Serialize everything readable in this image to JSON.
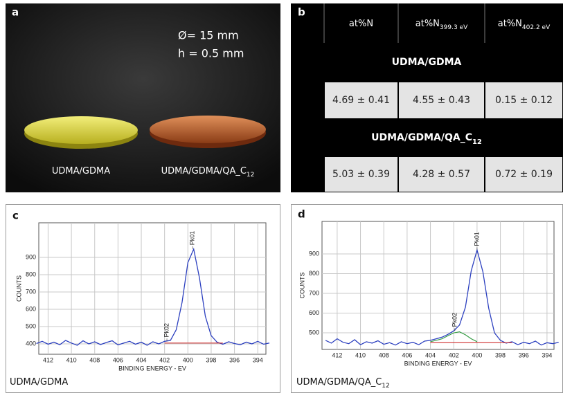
{
  "panel_a": {
    "panel_label": "a",
    "dimensions": [
      "Ø= 15 mm",
      "h = 0.5 mm"
    ],
    "labels": [
      {
        "text": "UDMA/GDMA"
      },
      {
        "text": "UDMA/GDMA/QA_C",
        "sub": "12"
      }
    ]
  },
  "panel_b": {
    "panel_label": "b",
    "header": [
      {
        "text": "at%N"
      },
      {
        "text": "at%N",
        "sub": "399.3 eV"
      },
      {
        "text": "at%N",
        "sub": "402.2 eV"
      }
    ],
    "groups": [
      {
        "title": {
          "text": "UDMA/GDMA"
        },
        "values": [
          "4.69 ± 0.41",
          "4.55 ± 0.43",
          "0.15 ± 0.12"
        ]
      },
      {
        "title": {
          "text": "UDMA/GDMA/QA_C",
          "sub": "12"
        },
        "values": [
          "5.03 ± 0.39",
          "4.28 ± 0.57",
          "0.72 ± 0.19"
        ]
      }
    ]
  },
  "chart_data": [
    {
      "type": "line",
      "panel_label": "c",
      "caption": {
        "text": "UDMA/GDMA"
      },
      "x_label": "BINDING ENERGY - EV",
      "y_label": "COUNTS",
      "x": [
        413,
        412.5,
        412,
        411.5,
        411,
        410.5,
        410,
        409.5,
        409,
        408.5,
        408,
        407.5,
        407,
        406.5,
        406,
        405.5,
        405,
        404.5,
        404,
        403.5,
        403,
        402.5,
        402,
        401.5,
        401,
        400.5,
        400,
        399.5,
        399,
        398.5,
        398,
        397.5,
        397,
        396.5,
        396,
        395.5,
        395,
        394.5,
        394,
        393.5,
        393
      ],
      "series": [
        {
          "color": "#2b3fbf",
          "values": [
            402,
            415,
            398,
            410,
            395,
            420,
            405,
            392,
            418,
            400,
            412,
            396,
            408,
            418,
            394,
            405,
            415,
            398,
            410,
            392,
            412,
            400,
            415,
            420,
            482,
            640,
            870,
            948,
            780,
            560,
            448,
            410,
            398,
            412,
            402,
            395,
            410,
            400,
            415,
            398,
            405
          ]
        },
        {
          "color": "#d03030",
          "values": [
            null,
            null,
            null,
            null,
            null,
            null,
            null,
            null,
            null,
            null,
            null,
            null,
            null,
            null,
            null,
            null,
            null,
            null,
            null,
            null,
            null,
            null,
            405,
            405,
            405,
            405,
            405,
            405,
            405,
            405,
            405,
            405,
            405,
            null,
            null,
            null,
            null,
            null,
            null,
            null,
            null
          ]
        }
      ],
      "annotations": [
        {
          "text": "Pk01",
          "x": 399.6
        },
        {
          "text": "Pk02",
          "x": 401.8
        }
      ],
      "xlim": [
        412.8,
        393.3
      ],
      "ylim": [
        340,
        1100
      ],
      "xticks": [
        412,
        410,
        408,
        406,
        404,
        402,
        400,
        398,
        396,
        394
      ],
      "yticks": [
        400,
        500,
        600,
        700,
        800,
        900
      ],
      "grid": true
    },
    {
      "type": "line",
      "panel_label": "d",
      "caption": {
        "text": "UDMA/GDMA/QA_C",
        "sub": "12"
      },
      "x_label": "BINDING ENERGY - EV",
      "y_label": "COUNTS",
      "x": [
        413,
        412.5,
        412,
        411.5,
        411,
        410.5,
        410,
        409.5,
        409,
        408.5,
        408,
        407.5,
        407,
        406.5,
        406,
        405.5,
        405,
        404.5,
        404,
        403.5,
        403,
        402.5,
        402,
        401.5,
        401,
        400.5,
        400,
        399.5,
        399,
        398.5,
        398,
        397.5,
        397,
        396.5,
        396,
        395.5,
        395,
        394.5,
        394,
        393.5,
        393
      ],
      "series": [
        {
          "color": "#2b3fbf",
          "values": [
            462,
            448,
            470,
            452,
            445,
            465,
            440,
            455,
            448,
            460,
            442,
            450,
            438,
            455,
            445,
            452,
            440,
            458,
            462,
            470,
            478,
            492,
            510,
            540,
            630,
            815,
            920,
            810,
            625,
            500,
            462,
            448,
            455,
            440,
            452,
            445,
            458,
            438,
            450,
            445,
            452
          ]
        },
        {
          "color": "#d03030",
          "values": [
            null,
            null,
            null,
            null,
            null,
            null,
            null,
            null,
            null,
            null,
            null,
            null,
            null,
            null,
            null,
            null,
            null,
            null,
            450,
            450,
            450,
            450,
            450,
            450,
            450,
            450,
            450,
            450,
            450,
            450,
            450,
            450,
            450,
            null,
            null,
            null,
            null,
            null,
            null,
            null,
            null
          ]
        },
        {
          "color": "#2e9a3e",
          "values": [
            null,
            null,
            null,
            null,
            null,
            null,
            null,
            null,
            null,
            null,
            null,
            null,
            null,
            null,
            null,
            null,
            null,
            null,
            455,
            462,
            470,
            485,
            500,
            505,
            490,
            470,
            455,
            null,
            null,
            null,
            null,
            null,
            null,
            null,
            null,
            null,
            null,
            null,
            null,
            null,
            null
          ]
        }
      ],
      "annotations": [
        {
          "text": "Pk01",
          "x": 400
        },
        {
          "text": "Pk02",
          "x": 401.9
        }
      ],
      "xlim": [
        413.3,
        393.4
      ],
      "ylim": [
        416,
        1065
      ],
      "xticks": [
        412,
        410,
        408,
        406,
        404,
        402,
        400,
        398,
        396,
        394
      ],
      "yticks": [
        500,
        600,
        700,
        800,
        900
      ],
      "grid": true
    }
  ]
}
